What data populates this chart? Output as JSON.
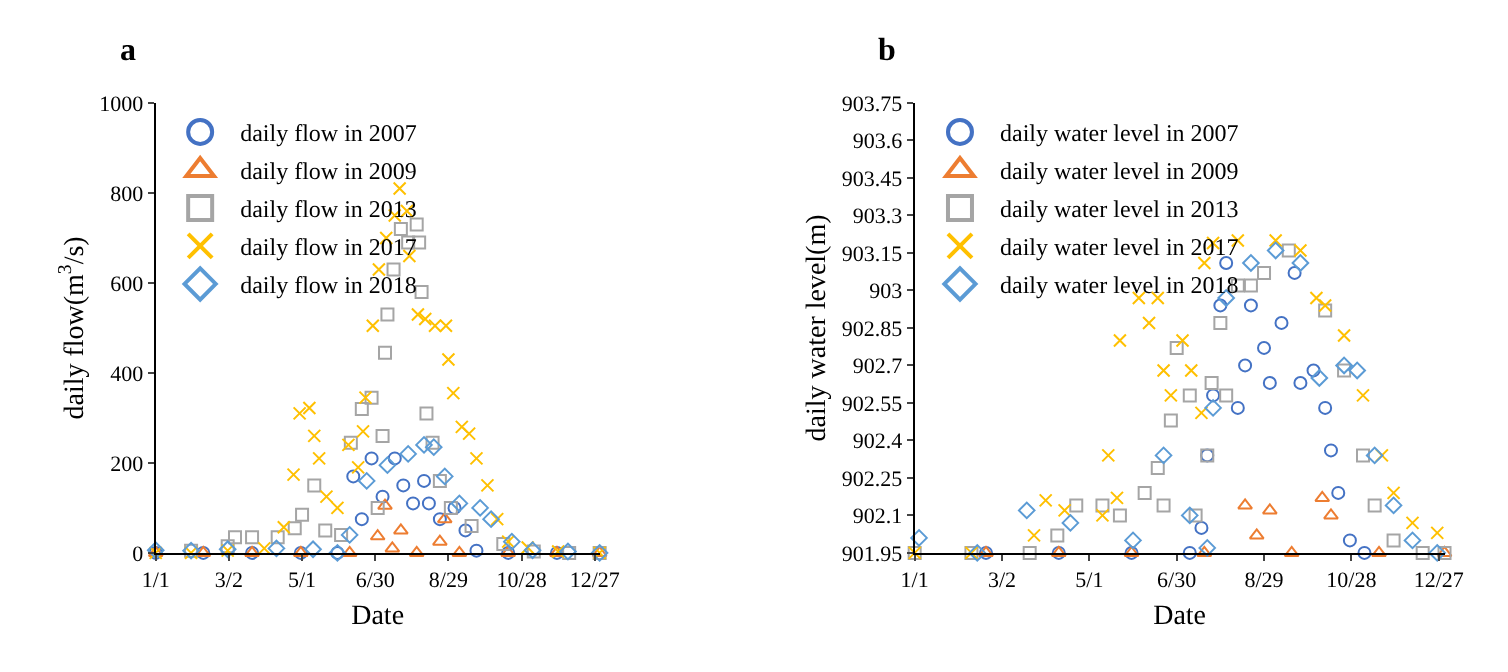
{
  "chart_data": [
    {
      "type": "scatter",
      "title": "a",
      "xlabel": "Date",
      "ylabel": "daily flow(m$^{3}$/s)",
      "xlim": [
        "--01-01",
        "--12-31"
      ],
      "ylim": [
        0,
        1000
      ],
      "xticks": [
        {
          "value": "--01-01",
          "label": "1/1"
        },
        {
          "value": "--03-02",
          "label": "3/2"
        },
        {
          "value": "--05-01",
          "label": "5/1"
        },
        {
          "value": "--06-30",
          "label": "6/30"
        },
        {
          "value": "--08-29",
          "label": "8/29"
        },
        {
          "value": "--10-28",
          "label": "10/28"
        },
        {
          "value": "--12-27",
          "label": "12/27"
        }
      ],
      "yticks": [
        0,
        200,
        400,
        600,
        800,
        1000
      ],
      "legend": "top left",
      "series": [
        {
          "name": "daily flow in 2007",
          "color": "#4472c4",
          "marker": "circle",
          "x": [
            "--01-01",
            "--02-09",
            "--03-21",
            "--04-30",
            "--05-30",
            "--06-12",
            "--06-19",
            "--06-27",
            "--07-06",
            "--07-16",
            "--07-23",
            "--07-31",
            "--08-09",
            "--08-13",
            "--08-22",
            "--09-03",
            "--09-12",
            "--09-21",
            "--10-17",
            "--11-26"
          ],
          "values": [
            0,
            0,
            0,
            0,
            0,
            170,
            75,
            210,
            125,
            210,
            150,
            110,
            160,
            110,
            75,
            100,
            50,
            5,
            0,
            0
          ]
        },
        {
          "name": "daily flow in 2009",
          "color": "#ed7d31",
          "marker": "triangle",
          "x": [
            "--01-01",
            "--02-09",
            "--03-21",
            "--04-30",
            "--06-09",
            "--07-02",
            "--07-08",
            "--07-14",
            "--07-21",
            "--08-03",
            "--08-22",
            "--08-26",
            "--09-07",
            "--10-17",
            "--11-26",
            "--12-31"
          ],
          "values": [
            0,
            0,
            0,
            0,
            0,
            37,
            105,
            10,
            50,
            0,
            25,
            75,
            0,
            0,
            0,
            0
          ]
        },
        {
          "name": "daily flow in 2013",
          "color": "#a5a5a5",
          "marker": "square",
          "x": [
            "--01-30",
            "--03-01",
            "--03-07",
            "--03-21",
            "--04-11",
            "--04-25",
            "--05-01",
            "--05-11",
            "--05-20",
            "--06-02",
            "--06-10",
            "--06-19",
            "--06-27",
            "--07-02",
            "--07-06",
            "--07-08",
            "--07-10",
            "--07-15",
            "--07-21",
            "--07-27",
            "--08-03",
            "--08-05",
            "--08-07",
            "--08-11",
            "--08-16",
            "--08-22",
            "--08-31",
            "--09-17",
            "--10-13",
            "--11-07",
            "--12-06",
            "--12-31"
          ],
          "values": [
            5,
            15,
            35,
            35,
            35,
            55,
            85,
            150,
            50,
            40,
            245,
            320,
            345,
            100,
            260,
            445,
            530,
            630,
            720,
            690,
            730,
            690,
            580,
            310,
            245,
            160,
            100,
            60,
            20,
            3,
            0,
            0
          ]
        },
        {
          "name": "daily flow in 2017",
          "color": "#ffc000",
          "marker": "cross",
          "x": [
            "--01-01",
            "--01-30",
            "--03-01",
            "--03-31",
            "--04-16",
            "--04-24",
            "--04-29",
            "--05-07",
            "--05-11",
            "--05-15",
            "--05-21",
            "--05-30",
            "--06-08",
            "--06-16",
            "--06-20",
            "--06-22",
            "--06-28",
            "--07-03",
            "--07-09",
            "--07-16",
            "--07-20",
            "--07-26",
            "--07-28",
            "--08-04",
            "--08-10",
            "--08-18",
            "--08-27",
            "--08-29",
            "--09-02",
            "--09-09",
            "--09-15",
            "--09-21",
            "--09-30",
            "--10-08",
            "--10-17",
            "--11-02",
            "--11-27",
            "--12-31"
          ],
          "values": [
            0,
            0,
            5,
            10,
            57,
            174,
            310,
            322,
            260,
            210,
            125,
            100,
            240,
            190,
            270,
            345,
            505,
            630,
            700,
            750,
            810,
            760,
            660,
            530,
            520,
            505,
            505,
            430,
            355,
            280,
            265,
            210,
            150,
            75,
            25,
            12,
            3,
            0
          ]
        },
        {
          "name": "daily flow in 2018",
          "color": "#5b9bd5",
          "marker": "diamond",
          "x": [
            "--01-01",
            "--01-30",
            "--03-01",
            "--04-10",
            "--05-10",
            "--05-30",
            "--06-09",
            "--06-23",
            "--07-10",
            "--07-27",
            "--08-09",
            "--08-17",
            "--08-26",
            "--09-07",
            "--09-24",
            "--10-03",
            "--10-20",
            "--11-06",
            "--12-05",
            "--12-31"
          ],
          "values": [
            6,
            5,
            8,
            10,
            8,
            0,
            40,
            160,
            195,
            220,
            240,
            235,
            170,
            110,
            100,
            75,
            25,
            6,
            3,
            0
          ]
        }
      ]
    },
    {
      "type": "scatter",
      "title": "b",
      "xlabel": "Date",
      "ylabel": "daily water level(m)",
      "xlim": [
        "--01-01",
        "--12-31"
      ],
      "ylim": [
        901.95,
        903.75
      ],
      "xticks": [
        {
          "value": "--01-01",
          "label": "1/1"
        },
        {
          "value": "--03-02",
          "label": "3/2"
        },
        {
          "value": "--05-01",
          "label": "5/1"
        },
        {
          "value": "--06-30",
          "label": "6/30"
        },
        {
          "value": "--08-29",
          "label": "8/29"
        },
        {
          "value": "--10-28",
          "label": "10/28"
        },
        {
          "value": "--12-27",
          "label": "12/27"
        }
      ],
      "yticks": [
        901.95,
        902.1,
        902.25,
        902.4,
        902.55,
        902.7,
        902.85,
        903,
        903.15,
        903.3,
        903.45,
        903.6,
        903.75
      ],
      "legend": "top left",
      "series": [
        {
          "name": "daily water level in 2007",
          "color": "#4472c4",
          "marker": "circle",
          "x": [
            "--02-19",
            "--04-10",
            "--05-30",
            "--07-09",
            "--07-17",
            "--07-21",
            "--07-25",
            "--07-30",
            "--08-03",
            "--08-11",
            "--08-16",
            "--08-20",
            "--08-29",
            "--09-02",
            "--09-10",
            "--09-19",
            "--09-23",
            "--10-02",
            "--10-10",
            "--10-14",
            "--10-19",
            "--10-27",
            "--11-06"
          ],
          "values": [
            901.95,
            901.95,
            901.95,
            901.95,
            902.05,
            902.34,
            902.58,
            902.94,
            903.11,
            902.53,
            902.7,
            902.94,
            902.77,
            902.63,
            902.87,
            903.07,
            902.63,
            902.68,
            902.53,
            902.36,
            902.19,
            902.0,
            901.95
          ]
        },
        {
          "name": "daily water level in 2009",
          "color": "#ed7d31",
          "marker": "triangle",
          "x": [
            "--02-19",
            "--04-10",
            "--05-30",
            "--07-19",
            "--08-16",
            "--08-24",
            "--09-02",
            "--09-17",
            "--10-08",
            "--10-14",
            "--11-16",
            "--12-31"
          ],
          "values": [
            901.95,
            901.95,
            901.95,
            901.95,
            902.14,
            902.02,
            902.12,
            901.95,
            902.17,
            902.1,
            901.95,
            901.95
          ]
        },
        {
          "name": "daily water level in 2013",
          "color": "#a5a5a5",
          "marker": "square",
          "x": [
            "--01-01",
            "--02-09",
            "--03-21",
            "--04-09",
            "--04-22",
            "--05-10",
            "--05-22",
            "--06-08",
            "--06-17",
            "--06-21",
            "--06-26",
            "--06-30",
            "--07-09",
            "--07-13",
            "--07-21",
            "--07-24",
            "--07-30",
            "--08-03",
            "--08-11",
            "--08-20",
            "--08-29",
            "--09-15",
            "--10-10",
            "--10-23",
            "--11-05",
            "--11-13",
            "--11-26",
            "--12-16",
            "--12-31"
          ],
          "values": [
            901.95,
            901.95,
            901.95,
            902.02,
            902.14,
            902.14,
            902.1,
            902.19,
            902.29,
            902.14,
            902.48,
            902.77,
            902.58,
            902.1,
            902.34,
            902.63,
            902.87,
            902.58,
            903.02,
            903.02,
            903.07,
            903.16,
            902.92,
            902.68,
            902.34,
            902.14,
            902.0,
            901.95,
            901.95
          ]
        },
        {
          "name": "daily water level in 2017",
          "color": "#ffc000",
          "marker": "cross",
          "x": [
            "--01-01",
            "--02-09",
            "--03-24",
            "--04-01",
            "--04-14",
            "--05-10",
            "--05-14",
            "--05-20",
            "--05-22",
            "--06-04",
            "--06-11",
            "--06-17",
            "--06-21",
            "--06-26",
            "--07-04",
            "--07-10",
            "--07-17",
            "--07-19",
            "--07-25",
            "--08-11",
            "--09-06",
            "--09-23",
            "--10-04",
            "--10-10",
            "--10-23",
            "--11-05",
            "--11-18",
            "--11-26",
            "--12-09",
            "--12-26"
          ],
          "values": [
            901.95,
            901.95,
            902.02,
            902.16,
            902.12,
            902.1,
            902.34,
            902.17,
            902.8,
            902.97,
            902.87,
            902.97,
            902.68,
            902.58,
            902.8,
            902.68,
            902.51,
            903.11,
            903.19,
            903.2,
            903.2,
            903.16,
            902.97,
            902.94,
            902.82,
            902.58,
            902.34,
            902.19,
            902.07,
            902.03
          ]
        },
        {
          "name": "daily water level in 2018",
          "color": "#5b9bd5",
          "marker": "diamond",
          "x": [
            "--01-04",
            "--02-13",
            "--03-19",
            "--04-18",
            "--05-31",
            "--06-21",
            "--07-09",
            "--07-21",
            "--07-25",
            "--08-03",
            "--08-20",
            "--09-06",
            "--09-23",
            "--10-06",
            "--10-23",
            "--11-01",
            "--11-13",
            "--11-26",
            "--12-09",
            "--12-26"
          ],
          "values": [
            902.01,
            901.95,
            902.12,
            902.07,
            902.0,
            902.34,
            902.1,
            901.97,
            902.53,
            902.97,
            903.11,
            903.16,
            903.11,
            902.65,
            902.7,
            902.68,
            902.34,
            902.14,
            902.0,
            901.95
          ]
        }
      ]
    }
  ]
}
